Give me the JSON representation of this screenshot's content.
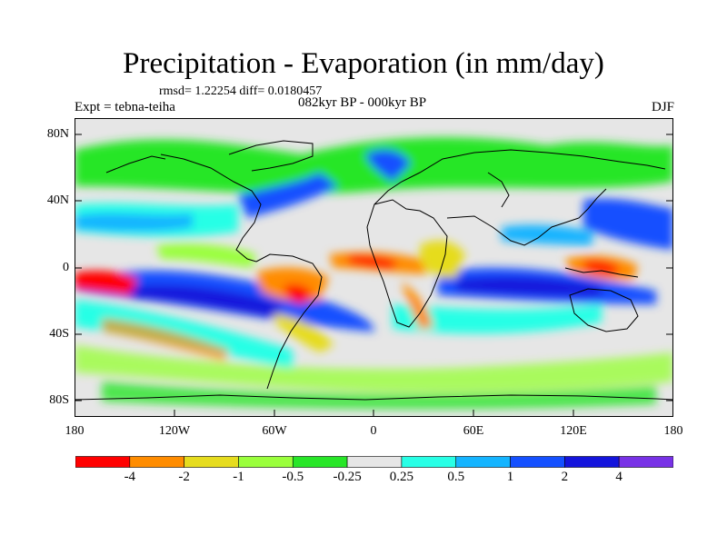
{
  "title": "Precipitation - Evaporation (in mm/day)",
  "stats": "rmsd= 1.22254 diff= 0.0180457",
  "experiment": "Expt = tebna-teiha",
  "period": "082kyr BP - 000kyr BP",
  "season": "DJF",
  "y_axis_labels": [
    "80N",
    "40N",
    "0",
    "40S",
    "80S"
  ],
  "x_axis_labels": [
    "180",
    "120W",
    "60W",
    "0",
    "60E",
    "120E",
    "180"
  ],
  "colorbar": {
    "colors": [
      "#ff0000",
      "#ff8c00",
      "#e6dc1e",
      "#9aff3c",
      "#28e628",
      "#e6e6e6",
      "#28ffe6",
      "#14b4ff",
      "#1450ff",
      "#1414dc",
      "#7832e6"
    ],
    "labels": [
      "-4",
      "-2",
      "-1",
      "-0.5",
      "-0.25",
      "0.25",
      "0.5",
      "1",
      "2",
      "4"
    ]
  }
}
